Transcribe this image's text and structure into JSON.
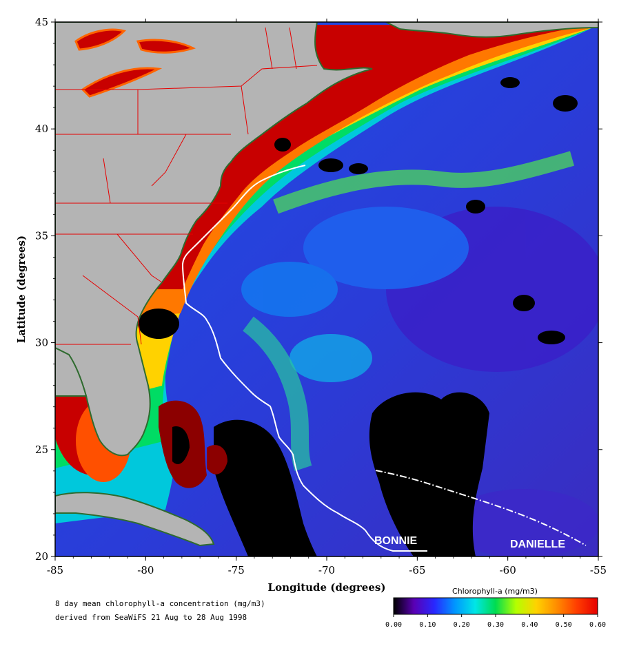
{
  "map": {
    "extent": {
      "lon": [
        -85,
        -55
      ],
      "lat": [
        20,
        45
      ]
    },
    "x_ticks": [
      "-85",
      "-80",
      "-75",
      "-70",
      "-65",
      "-60",
      "-55"
    ],
    "y_ticks": [
      "20",
      "25",
      "30",
      "35",
      "40",
      "45"
    ],
    "x_label": "Longitude (degrees)",
    "y_label": "Latitude (degrees)"
  },
  "storms": [
    {
      "name": "BONNIE",
      "style": "solid"
    },
    {
      "name": "DANIELLE",
      "style": "dash-dot"
    }
  ],
  "caption": {
    "line1": "8 day mean chlorophyll-a concentration (mg/m3)",
    "line2": "derived from SeaWiFS 21 Aug to 28 Aug 1998"
  },
  "colorbar": {
    "title": "Chlorophyll-a (mg/m3)",
    "ticks": [
      "0.00",
      "0.10",
      "0.20",
      "0.30",
      "0.40",
      "0.50",
      "0.60"
    ],
    "colors": [
      "#000000",
      "#5a00b4",
      "#2828ff",
      "#0096ff",
      "#00e6e6",
      "#00dc50",
      "#b4ff00",
      "#ffd200",
      "#ff8c00",
      "#ff3c00",
      "#e60000"
    ]
  },
  "colors": {
    "land": "#b4b4b4",
    "ocean_low": "#2a3cd8",
    "coastal_high": "#8c0000",
    "state_borders": "#e60000",
    "track": "#ffffff"
  }
}
